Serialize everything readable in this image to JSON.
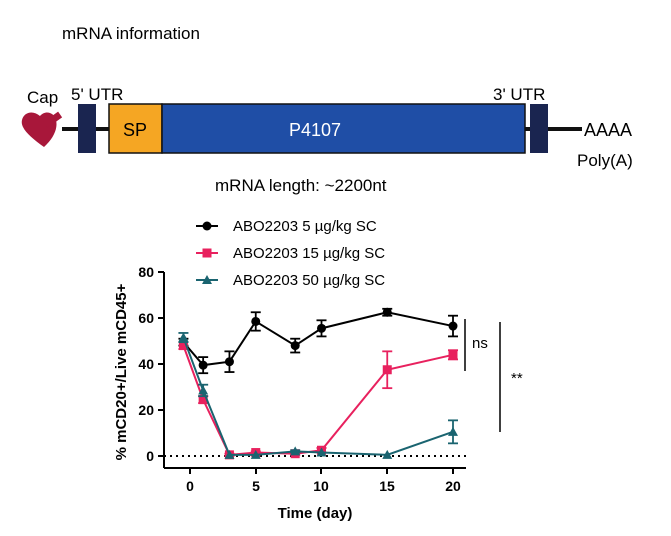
{
  "header": {
    "title": "mRNA information"
  },
  "construct": {
    "cap_label": "Cap",
    "utr5_label": "5' UTR",
    "utr3_label": "3' UTR",
    "sp_label": "SP",
    "gene_label": "P4107",
    "polya_seq": "AAAA",
    "polya_label": "Poly(A)",
    "length_text": "mRNA length: ~2200nt",
    "colors": {
      "utr": "#1a2550",
      "sp": "#f5a623",
      "gene": "#1f4ea6",
      "cap": "#a8173a",
      "line": "#111111"
    }
  },
  "chart_data": {
    "type": "line",
    "xlabel": "Time (day)",
    "ylabel": "% mCD20+/Live mCD45+",
    "xlim": [
      -1.5,
      21.5
    ],
    "ylim": [
      -5,
      80
    ],
    "xticks": [
      0,
      5,
      10,
      15,
      20
    ],
    "yticks": [
      0,
      20,
      40,
      60,
      80
    ],
    "grid": false,
    "legend": "top-left",
    "baseline": 0,
    "series": [
      {
        "name": "ABO2203 5 µg/kg SC",
        "color": "#000000",
        "marker": "circle",
        "x": [
          -0.5,
          1,
          3,
          5,
          8,
          10,
          15,
          20
        ],
        "y": [
          49.5,
          39.5,
          41,
          58.5,
          48,
          55.5,
          62.5,
          56.5
        ],
        "err": [
          1.5,
          3.5,
          4.5,
          4,
          3,
          3.5,
          1.5,
          4.5
        ]
      },
      {
        "name": "ABO2203 15 µg/kg SC",
        "color": "#e8215e",
        "marker": "square",
        "x": [
          -0.5,
          1,
          3,
          5,
          8,
          10,
          15,
          20
        ],
        "y": [
          48,
          24.5,
          0.5,
          1.5,
          1,
          2.5,
          37.5,
          44
        ],
        "err": [
          1.5,
          1.5,
          0.5,
          0.5,
          0.5,
          1,
          8,
          2
        ]
      },
      {
        "name": "ABO2203 50 µg/kg SC",
        "color": "#1a6470",
        "marker": "triangle",
        "x": [
          -0.5,
          1,
          3,
          5,
          8,
          10,
          15,
          20
        ],
        "y": [
          51.5,
          28.5,
          0.5,
          0.5,
          2,
          1.5,
          0.5,
          10.5
        ],
        "err": [
          2,
          2.5,
          0.3,
          0.3,
          0.5,
          0.3,
          0.3,
          5
        ]
      }
    ],
    "annotations": {
      "ns": "ns",
      "significance": "**"
    }
  }
}
